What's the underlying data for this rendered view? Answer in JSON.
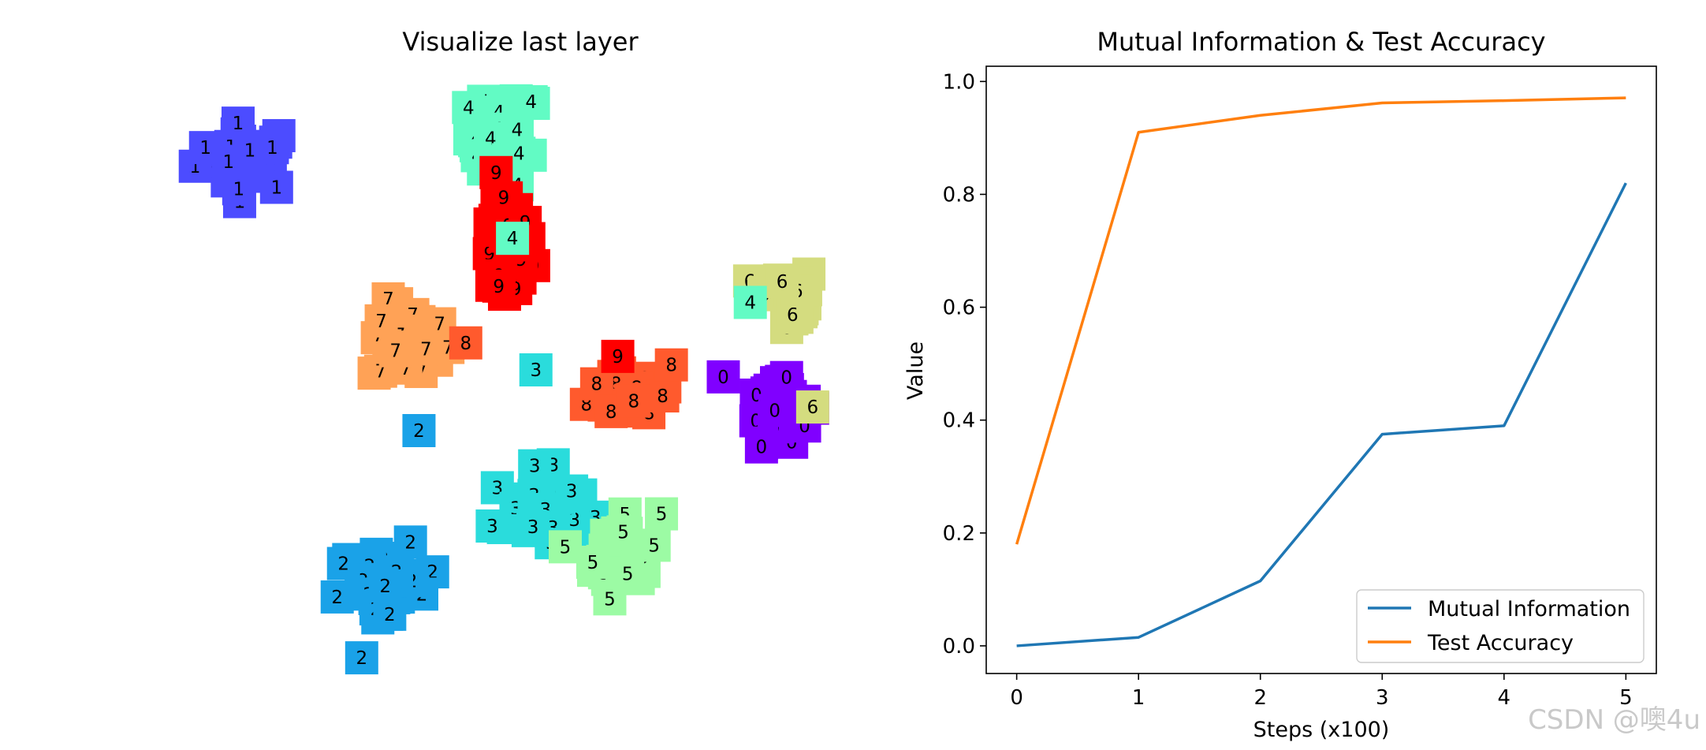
{
  "watermark": "CSDN @噢4u",
  "chart_data": [
    {
      "type": "scatter",
      "title": "Visualize last layer",
      "axes_visible": false,
      "marker": "digit-label-on-colored-square",
      "colormap": "rainbow",
      "class_colors": {
        "0": "#8000ff",
        "1": "#4c4cff",
        "2": "#1aa2e8",
        "3": "#2adcdc",
        "4": "#62fbc4",
        "5": "#9cfba4",
        "6": "#d4dc7f",
        "7": "#ffa256",
        "8": "#ff5a2d",
        "9": "#ff0000"
      },
      "clusters": [
        {
          "label": "1",
          "center": [
            -70,
            68
          ],
          "n": 28,
          "spread": [
            6.5,
            5
          ]
        },
        {
          "label": "4",
          "center": [
            -4,
            74
          ],
          "n": 30,
          "spread": [
            4.5,
            7
          ]
        },
        {
          "label": "9",
          "center": [
            -4,
            41
          ],
          "n": 32,
          "spread": [
            3.5,
            9
          ]
        },
        {
          "label": "7",
          "center": [
            -28,
            13
          ],
          "n": 28,
          "spread": [
            5,
            6
          ]
        },
        {
          "label": "6",
          "center": [
            68,
            26
          ],
          "n": 22,
          "spread": [
            4,
            5
          ]
        },
        {
          "label": "8",
          "center": [
            30,
            -1
          ],
          "n": 30,
          "spread": [
            6,
            5
          ]
        },
        {
          "label": "0",
          "center": [
            66,
            -4
          ],
          "n": 24,
          "spread": [
            4,
            6
          ]
        },
        {
          "label": "3",
          "center": [
            4,
            -37
          ],
          "n": 30,
          "spread": [
            5.5,
            6
          ]
        },
        {
          "label": "5",
          "center": [
            26,
            -49
          ],
          "n": 28,
          "spread": [
            5,
            6.5
          ]
        },
        {
          "label": "2",
          "center": [
            -34,
            -60
          ],
          "n": 30,
          "spread": [
            6.5,
            6
          ]
        }
      ],
      "outliers": [
        {
          "label": "3",
          "x": 4,
          "y": 5
        },
        {
          "label": "2",
          "x": -26,
          "y": -13
        },
        {
          "label": "8",
          "x": -14,
          "y": 13
        },
        {
          "label": "4",
          "x": -2,
          "y": 44
        },
        {
          "label": "4",
          "x": 59,
          "y": 25
        },
        {
          "label": "6",
          "x": 75,
          "y": -6
        },
        {
          "label": "9",
          "x": 25,
          "y": 9
        }
      ],
      "xlim": [
        -90,
        90
      ],
      "ylim": [
        -85,
        95
      ]
    },
    {
      "type": "line",
      "title": "Mutual Information & Test Accuracy",
      "xlabel": "Steps (x100)",
      "ylabel": "Value",
      "x": [
        0,
        1,
        2,
        3,
        4,
        5
      ],
      "xticks": [
        "0",
        "1",
        "2",
        "3",
        "4",
        "5"
      ],
      "yticks": [
        "0.0",
        "0.2",
        "0.4",
        "0.6",
        "0.8",
        "1.0"
      ],
      "xlim": [
        -0.25,
        5.25
      ],
      "ylim": [
        -0.049,
        1.027
      ],
      "legend_position": "lower-right",
      "series": [
        {
          "name": "Mutual Information",
          "color": "#1f77b4",
          "values": [
            0.0,
            0.015,
            0.115,
            0.375,
            0.39,
            0.82
          ]
        },
        {
          "name": "Test Accuracy",
          "color": "#ff7f0e",
          "values": [
            0.18,
            0.91,
            0.94,
            0.962,
            0.966,
            0.971
          ]
        }
      ]
    }
  ]
}
